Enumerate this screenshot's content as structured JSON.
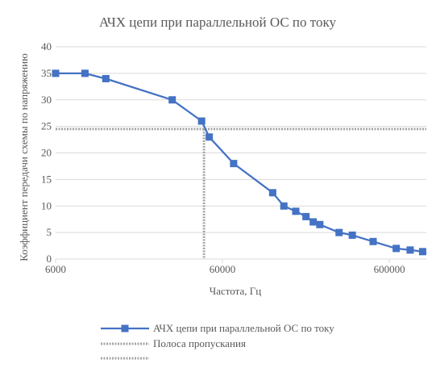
{
  "chart_data": {
    "type": "line",
    "title": "АЧХ цепи при параллельной ОС по току",
    "xlabel": "Частота, Гц",
    "ylabel": "Коэффициент передачи схемы по напряжению",
    "x_scale": "log",
    "xlim": [
      6000,
      1000000
    ],
    "ylim": [
      0,
      40
    ],
    "x_ticks": [
      {
        "value": 6000,
        "label": "6000"
      },
      {
        "value": 60000,
        "label": "60000"
      },
      {
        "value": 600000,
        "label": "600000"
      }
    ],
    "y_ticks": [
      0,
      5,
      10,
      15,
      20,
      25,
      30,
      35,
      40
    ],
    "grid": "horizontal",
    "legend_position": "bottom",
    "colors": {
      "series": "#4472c4",
      "band": "#a5a5a5",
      "grid": "#d9d9d9",
      "text": "#595959"
    },
    "series": [
      {
        "name": "АЧХ цепи при параллельной ОС по току",
        "marker": "square",
        "x": [
          6000,
          9000,
          12000,
          30000,
          45000,
          50000,
          70000,
          120000,
          140000,
          165000,
          190000,
          210000,
          230000,
          300000,
          360000,
          480000,
          660000,
          800000,
          950000,
          1000000
        ],
        "y": [
          35,
          35,
          34,
          30,
          26,
          23,
          18,
          12.5,
          10,
          9,
          8,
          7,
          6.5,
          5,
          4.5,
          3.3,
          2,
          1.7,
          1.4,
          1
        ]
      }
    ],
    "band": {
      "name": "Полоса пропускания",
      "level": 24.5,
      "x": 46500
    }
  }
}
